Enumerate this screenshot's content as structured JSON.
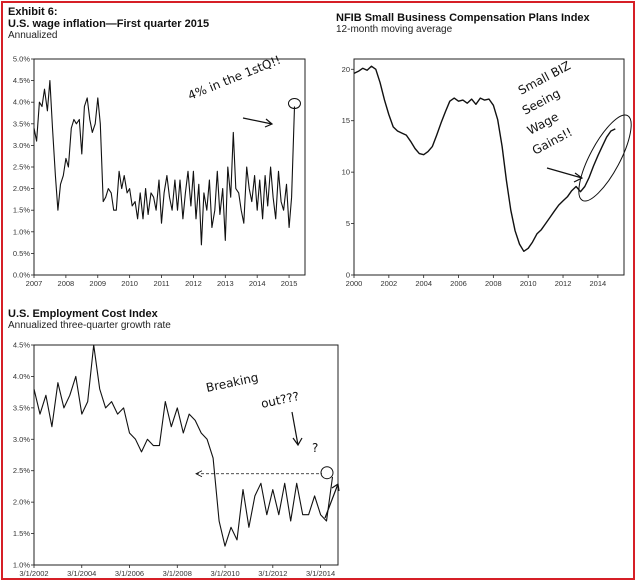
{
  "exhibit_label": "Exhibit 6:",
  "chart_data": [
    {
      "type": "line",
      "title": "U.S. wage inflation—First quarter 2015",
      "subtitle": "Annualized",
      "xlim": [
        2007,
        2015.5
      ],
      "ylim": [
        0,
        5
      ],
      "x_ticks": [
        "2007",
        "2008",
        "2009",
        "2010",
        "2011",
        "2012",
        "2013",
        "2014",
        "2015"
      ],
      "y_ticks": [
        "0.0%",
        "0.5%",
        "1.0%",
        "1.5%",
        "2.0%",
        "2.5%",
        "3.0%",
        "3.5%",
        "4.0%",
        "4.5%",
        "5.0%"
      ],
      "annotation": "4% in the 1stQ!!",
      "series": [
        {
          "x": [
            2007.0,
            2007.08,
            2007.17,
            2007.25,
            2007.33,
            2007.42,
            2007.5,
            2007.58,
            2007.67,
            2007.75,
            2007.83,
            2007.92,
            2008.0,
            2008.08,
            2008.17,
            2008.25,
            2008.33,
            2008.42,
            2008.5,
            2008.58,
            2008.67,
            2008.75,
            2008.83,
            2008.92,
            2009.0,
            2009.08,
            2009.17,
            2009.25,
            2009.33,
            2009.42,
            2009.5,
            2009.58,
            2009.67,
            2009.75,
            2009.83,
            2009.92,
            2010.0,
            2010.08,
            2010.17,
            2010.25,
            2010.33,
            2010.42,
            2010.5,
            2010.58,
            2010.67,
            2010.75,
            2010.83,
            2010.92,
            2011.0,
            2011.08,
            2011.17,
            2011.25,
            2011.33,
            2011.42,
            2011.5,
            2011.58,
            2011.67,
            2011.75,
            2011.83,
            2011.92,
            2012.0,
            2012.08,
            2012.17,
            2012.25,
            2012.33,
            2012.42,
            2012.5,
            2012.58,
            2012.67,
            2012.75,
            2012.83,
            2012.92,
            2013.0,
            2013.08,
            2013.17,
            2013.25,
            2013.33,
            2013.42,
            2013.5,
            2013.58,
            2013.67,
            2013.75,
            2013.83,
            2013.92,
            2014.0,
            2014.08,
            2014.17,
            2014.25,
            2014.33,
            2014.42,
            2014.5,
            2014.58,
            2014.67,
            2014.75,
            2014.83,
            2014.92,
            2015.0,
            2015.08,
            2015.17
          ],
          "values": [
            3.4,
            3.1,
            4.0,
            3.9,
            4.3,
            3.8,
            4.5,
            3.4,
            2.3,
            1.5,
            2.1,
            2.3,
            2.7,
            2.5,
            3.4,
            3.6,
            3.5,
            3.6,
            2.8,
            3.9,
            4.1,
            3.6,
            3.3,
            3.5,
            4.1,
            3.5,
            1.7,
            1.8,
            2.0,
            1.9,
            1.5,
            1.5,
            2.4,
            2.0,
            2.3,
            1.9,
            2.0,
            1.6,
            1.7,
            1.3,
            1.9,
            1.3,
            2.0,
            1.4,
            1.9,
            1.8,
            1.5,
            2.2,
            1.2,
            1.9,
            2.3,
            1.8,
            1.5,
            2.2,
            1.5,
            2.2,
            1.3,
            1.9,
            2.4,
            1.6,
            2.4,
            1.3,
            2.1,
            0.7,
            1.9,
            1.5,
            2.2,
            1.1,
            1.5,
            2.4,
            1.4,
            2.0,
            0.8,
            2.5,
            1.8,
            3.3,
            2.0,
            1.9,
            1.5,
            1.2,
            2.5,
            2.0,
            1.7,
            2.3,
            1.5,
            2.2,
            1.3,
            2.3,
            1.6,
            2.5,
            1.8,
            1.3,
            2.4,
            1.7,
            1.5,
            2.1,
            1.1,
            1.8,
            3.9
          ]
        }
      ]
    },
    {
      "type": "line",
      "title": "NFIB Small Business Compensation Plans Index",
      "subtitle": "12-month moving average",
      "xlim": [
        2000,
        2015.5
      ],
      "ylim": [
        0,
        21
      ],
      "x_ticks": [
        "2000",
        "2002",
        "2004",
        "2006",
        "2008",
        "2010",
        "2012",
        "2014"
      ],
      "y_ticks": [
        "0",
        "5",
        "10",
        "15",
        "20"
      ],
      "annotation": [
        "Small BIZ",
        "Seeing",
        "Wage",
        "Gains!!"
      ],
      "series": [
        {
          "x": [
            2000.0,
            2000.25,
            2000.5,
            2000.75,
            2001.0,
            2001.25,
            2001.5,
            2001.75,
            2002.0,
            2002.25,
            2002.5,
            2002.75,
            2003.0,
            2003.25,
            2003.5,
            2003.75,
            2004.0,
            2004.25,
            2004.5,
            2004.75,
            2005.0,
            2005.25,
            2005.5,
            2005.75,
            2006.0,
            2006.25,
            2006.5,
            2006.75,
            2007.0,
            2007.25,
            2007.5,
            2007.75,
            2008.0,
            2008.25,
            2008.5,
            2008.75,
            2009.0,
            2009.25,
            2009.5,
            2009.75,
            2010.0,
            2010.25,
            2010.5,
            2010.75,
            2011.0,
            2011.25,
            2011.5,
            2011.75,
            2012.0,
            2012.25,
            2012.5,
            2012.75,
            2013.0,
            2013.25,
            2013.5,
            2013.75,
            2014.0,
            2014.25,
            2014.5,
            2014.75,
            2015.0
          ],
          "values": [
            19.6,
            19.8,
            20.1,
            19.9,
            20.3,
            20.0,
            18.7,
            17.0,
            15.6,
            14.4,
            14.0,
            13.8,
            13.6,
            13.0,
            12.3,
            11.8,
            11.7,
            12.0,
            12.5,
            13.6,
            14.8,
            15.9,
            16.9,
            17.2,
            16.9,
            17.0,
            16.7,
            17.1,
            16.6,
            17.2,
            17.0,
            17.1,
            16.5,
            15.1,
            12.5,
            9.2,
            6.3,
            4.3,
            3.0,
            2.3,
            2.6,
            3.2,
            4.0,
            4.4,
            5.0,
            5.6,
            6.2,
            6.8,
            7.2,
            7.6,
            8.2,
            8.6,
            8.1,
            8.6,
            9.5,
            10.6,
            11.6,
            12.5,
            13.4,
            14.0,
            14.2
          ]
        }
      ]
    },
    {
      "type": "line",
      "title": "U.S. Employment Cost Index",
      "subtitle": "Annualized three-quarter growth rate",
      "xlim": [
        2002.17,
        2014.9
      ],
      "ylim": [
        1.0,
        4.5
      ],
      "x_ticks": [
        "3/1/2002",
        "3/1/2004",
        "3/1/2006",
        "3/1/2008",
        "3/1/2010",
        "3/1/2012",
        "3/1/2014"
      ],
      "y_ticks": [
        "1.0%",
        "1.5%",
        "2.0%",
        "2.5%",
        "3.0%",
        "3.5%",
        "4.0%",
        "4.5%"
      ],
      "annotation": [
        "Breaking",
        "out???",
        "?"
      ],
      "series": [
        {
          "x": [
            2002.17,
            2002.42,
            2002.67,
            2002.92,
            2003.17,
            2003.42,
            2003.67,
            2003.92,
            2004.17,
            2004.42,
            2004.67,
            2004.92,
            2005.17,
            2005.42,
            2005.67,
            2005.92,
            2006.17,
            2006.42,
            2006.67,
            2006.92,
            2007.17,
            2007.42,
            2007.67,
            2007.92,
            2008.17,
            2008.42,
            2008.67,
            2008.92,
            2009.17,
            2009.42,
            2009.67,
            2009.92,
            2010.17,
            2010.42,
            2010.67,
            2010.92,
            2011.17,
            2011.42,
            2011.67,
            2011.92,
            2012.17,
            2012.42,
            2012.67,
            2012.92,
            2013.17,
            2013.42,
            2013.67,
            2013.92,
            2014.17,
            2014.42,
            2014.67
          ],
          "values": [
            3.8,
            3.4,
            3.7,
            3.2,
            3.9,
            3.5,
            3.7,
            4.0,
            3.4,
            3.6,
            4.5,
            3.8,
            3.5,
            3.6,
            3.4,
            3.5,
            3.1,
            3.0,
            2.8,
            3.0,
            2.9,
            2.9,
            3.6,
            3.2,
            3.5,
            3.1,
            3.4,
            3.3,
            3.1,
            3.0,
            2.7,
            1.7,
            1.3,
            1.6,
            1.4,
            2.2,
            1.6,
            2.1,
            2.3,
            1.8,
            2.2,
            1.8,
            2.3,
            1.7,
            2.3,
            1.8,
            1.8,
            2.1,
            1.8,
            1.7,
            2.4
          ]
        }
      ]
    }
  ]
}
